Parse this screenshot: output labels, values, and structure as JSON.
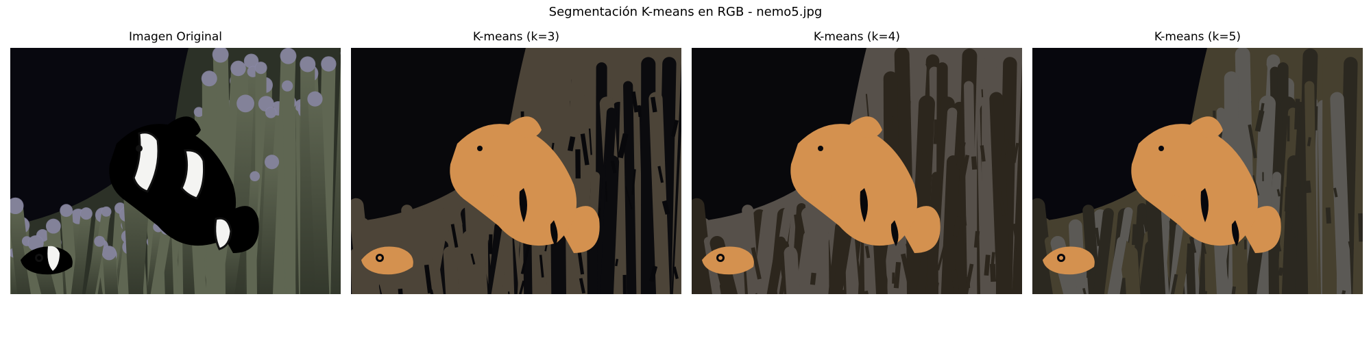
{
  "figure": {
    "title": "Segmentación K-means en RGB - nemo5.jpg"
  },
  "panels": [
    {
      "title": "Imagen Original",
      "kind": "photo",
      "colors": {
        "background": "#08080f",
        "anemone": "#5f6652",
        "anemone_dark": "#33382c",
        "anemone_tip": "#8a87a6",
        "fish_orange": "#e8770e",
        "fish_white": "#f4f4f2",
        "fish_black": "#111111"
      }
    },
    {
      "title": "K-means (k=3)",
      "kind": "segmentation",
      "colors": {
        "background": "#08080b",
        "dark": "#0b0b0e",
        "mid": "#4c4438",
        "light": "#4c4438",
        "fish": "#d4914f"
      }
    },
    {
      "title": "K-means (k=4)",
      "kind": "segmentation",
      "colors": {
        "background": "#08080b",
        "dark": "#2c261d",
        "mid": "#56504a",
        "light": "#56504a",
        "fish": "#d4914f"
      }
    },
    {
      "title": "K-means (k=5)",
      "kind": "segmentation",
      "colors": {
        "background": "#07070d",
        "dark": "#2b2820",
        "mid": "#46402f",
        "light": "#5b5955",
        "fish": "#d4914f"
      }
    }
  ]
}
